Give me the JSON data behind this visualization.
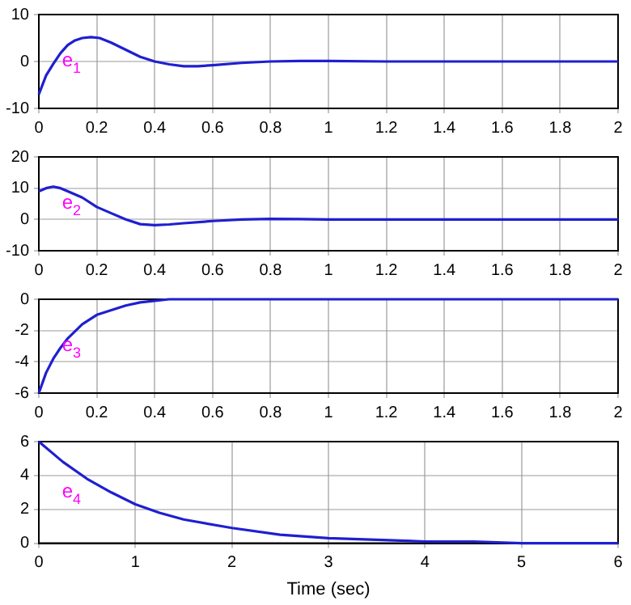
{
  "chart_data": [
    {
      "type": "line",
      "x": [
        0,
        0.025,
        0.05,
        0.075,
        0.1,
        0.125,
        0.15,
        0.18,
        0.21,
        0.25,
        0.3,
        0.35,
        0.4,
        0.45,
        0.5,
        0.55,
        0.6,
        0.7,
        0.8,
        0.9,
        1,
        1.2,
        1.5,
        2
      ],
      "series": [
        {
          "color": "#1f1fd0",
          "values": [
            -7,
            -3,
            -0.5,
            1.8,
            3.5,
            4.5,
            5,
            5.2,
            5,
            4,
            2.5,
            1,
            0,
            -0.6,
            -1,
            -1,
            -0.8,
            -0.3,
            0,
            0.1,
            0.1,
            0,
            0,
            0
          ]
        }
      ],
      "xlim": [
        0,
        2
      ],
      "ylim": [
        -10,
        10
      ],
      "xticks": [
        0,
        0.2,
        0.4,
        0.6,
        0.8,
        1,
        1.2,
        1.4,
        1.6,
        1.8,
        2
      ],
      "yticks": [
        -10,
        0,
        10
      ],
      "grid": true,
      "line_style": "solid",
      "marker": "none",
      "annotations": [
        "e$_{1}$"
      ]
    },
    {
      "type": "line",
      "x": [
        0,
        0.025,
        0.05,
        0.075,
        0.1,
        0.15,
        0.2,
        0.25,
        0.3,
        0.35,
        0.4,
        0.45,
        0.5,
        0.6,
        0.7,
        0.8,
        0.9,
        1,
        1.5,
        2
      ],
      "series": [
        {
          "color": "#1f1fd0",
          "values": [
            9,
            10,
            10.5,
            10,
            9,
            7,
            4,
            2,
            0,
            -1.5,
            -1.8,
            -1.6,
            -1.2,
            -0.5,
            0,
            0.2,
            0.1,
            0,
            0,
            0
          ]
        }
      ],
      "xlim": [
        0,
        2
      ],
      "ylim": [
        -10,
        20
      ],
      "xticks": [
        0,
        0.2,
        0.4,
        0.6,
        0.8,
        1,
        1.2,
        1.4,
        1.6,
        1.8,
        2
      ],
      "yticks": [
        -10,
        0,
        10,
        20
      ],
      "grid": true,
      "line_style": "solid",
      "marker": "none",
      "annotations": [
        "e$_{2}$"
      ]
    },
    {
      "type": "line",
      "x": [
        0,
        0.025,
        0.05,
        0.075,
        0.1,
        0.15,
        0.2,
        0.25,
        0.3,
        0.35,
        0.4,
        0.45,
        0.5,
        0.6,
        1,
        1.5,
        2
      ],
      "series": [
        {
          "color": "#1f1fd0",
          "values": [
            -6,
            -4.7,
            -3.8,
            -3.1,
            -2.5,
            -1.6,
            -1,
            -0.7,
            -0.4,
            -0.2,
            -0.1,
            0,
            0,
            0,
            0,
            0,
            0
          ]
        }
      ],
      "xlim": [
        0,
        2
      ],
      "ylim": [
        -6,
        0
      ],
      "xticks": [
        0,
        0.2,
        0.4,
        0.6,
        0.8,
        1,
        1.2,
        1.4,
        1.6,
        1.8,
        2
      ],
      "yticks": [
        -6,
        -4,
        -2,
        0
      ],
      "grid": true,
      "line_style": "solid",
      "marker": "none",
      "annotations": [
        "e$_{3}$"
      ]
    },
    {
      "type": "line",
      "x": [
        0,
        0.25,
        0.5,
        0.75,
        1,
        1.25,
        1.5,
        2,
        2.5,
        3,
        3.5,
        4,
        4.5,
        5,
        5.5,
        6
      ],
      "series": [
        {
          "color": "#1f1fd0",
          "values": [
            6,
            4.8,
            3.8,
            3,
            2.3,
            1.8,
            1.4,
            0.9,
            0.5,
            0.3,
            0.2,
            0.1,
            0.1,
            0,
            0,
            0
          ]
        }
      ],
      "xlim": [
        0,
        6
      ],
      "ylim": [
        0,
        6
      ],
      "xticks": [
        0,
        1,
        2,
        3,
        4,
        5,
        6
      ],
      "yticks": [
        0,
        2,
        4,
        6
      ],
      "grid": true,
      "line_style": "solid",
      "marker": "none",
      "xlabel": "Time (sec)",
      "annotations": [
        "e$_{4}$"
      ]
    }
  ]
}
